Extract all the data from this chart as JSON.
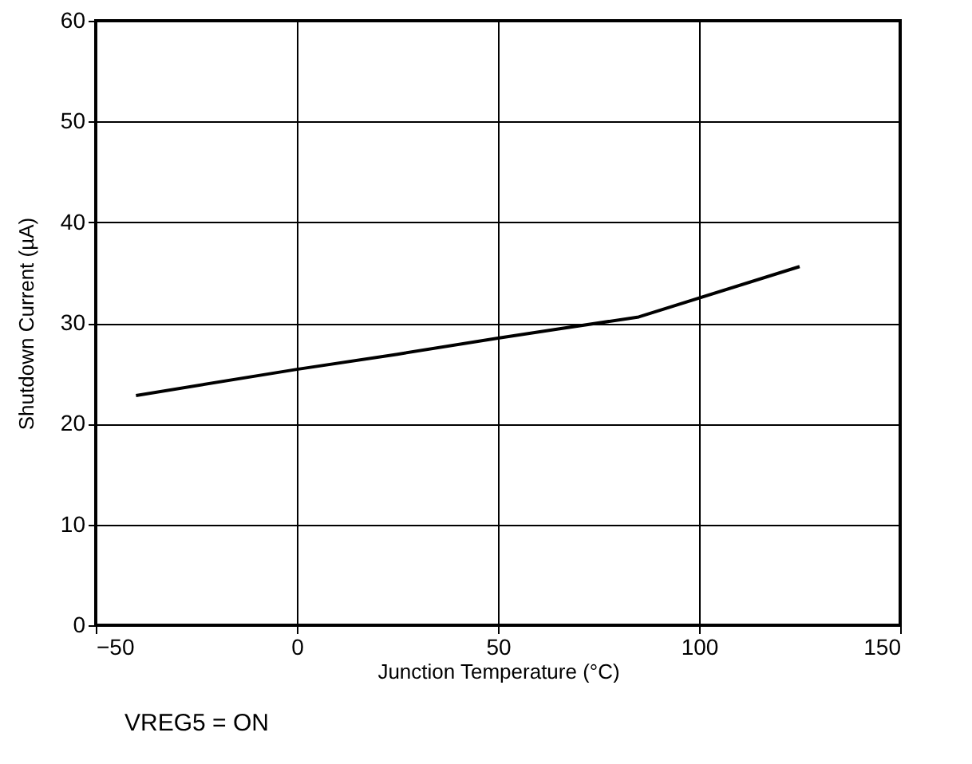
{
  "chart_data": {
    "type": "line",
    "xlabel": "Junction Temperature (°C)",
    "ylabel": "Shutdown Current (µA)",
    "annotations": [
      "VREG5 = ON"
    ],
    "x": [
      -40,
      0,
      25,
      50,
      65,
      85,
      125
    ],
    "series": [
      {
        "color": "#000000",
        "values": [
          22.8,
          25.4,
          26.9,
          28.5,
          29.4,
          30.6,
          35.6
        ]
      }
    ],
    "xlim": [
      -50,
      150
    ],
    "xticks": [
      -50,
      0,
      50,
      100,
      150
    ],
    "ylim": [
      0,
      60
    ],
    "yticks": [
      0,
      10,
      20,
      30,
      40,
      50,
      60
    ],
    "grid": true,
    "legend": false,
    "marker": "none",
    "line_style": "solid"
  }
}
